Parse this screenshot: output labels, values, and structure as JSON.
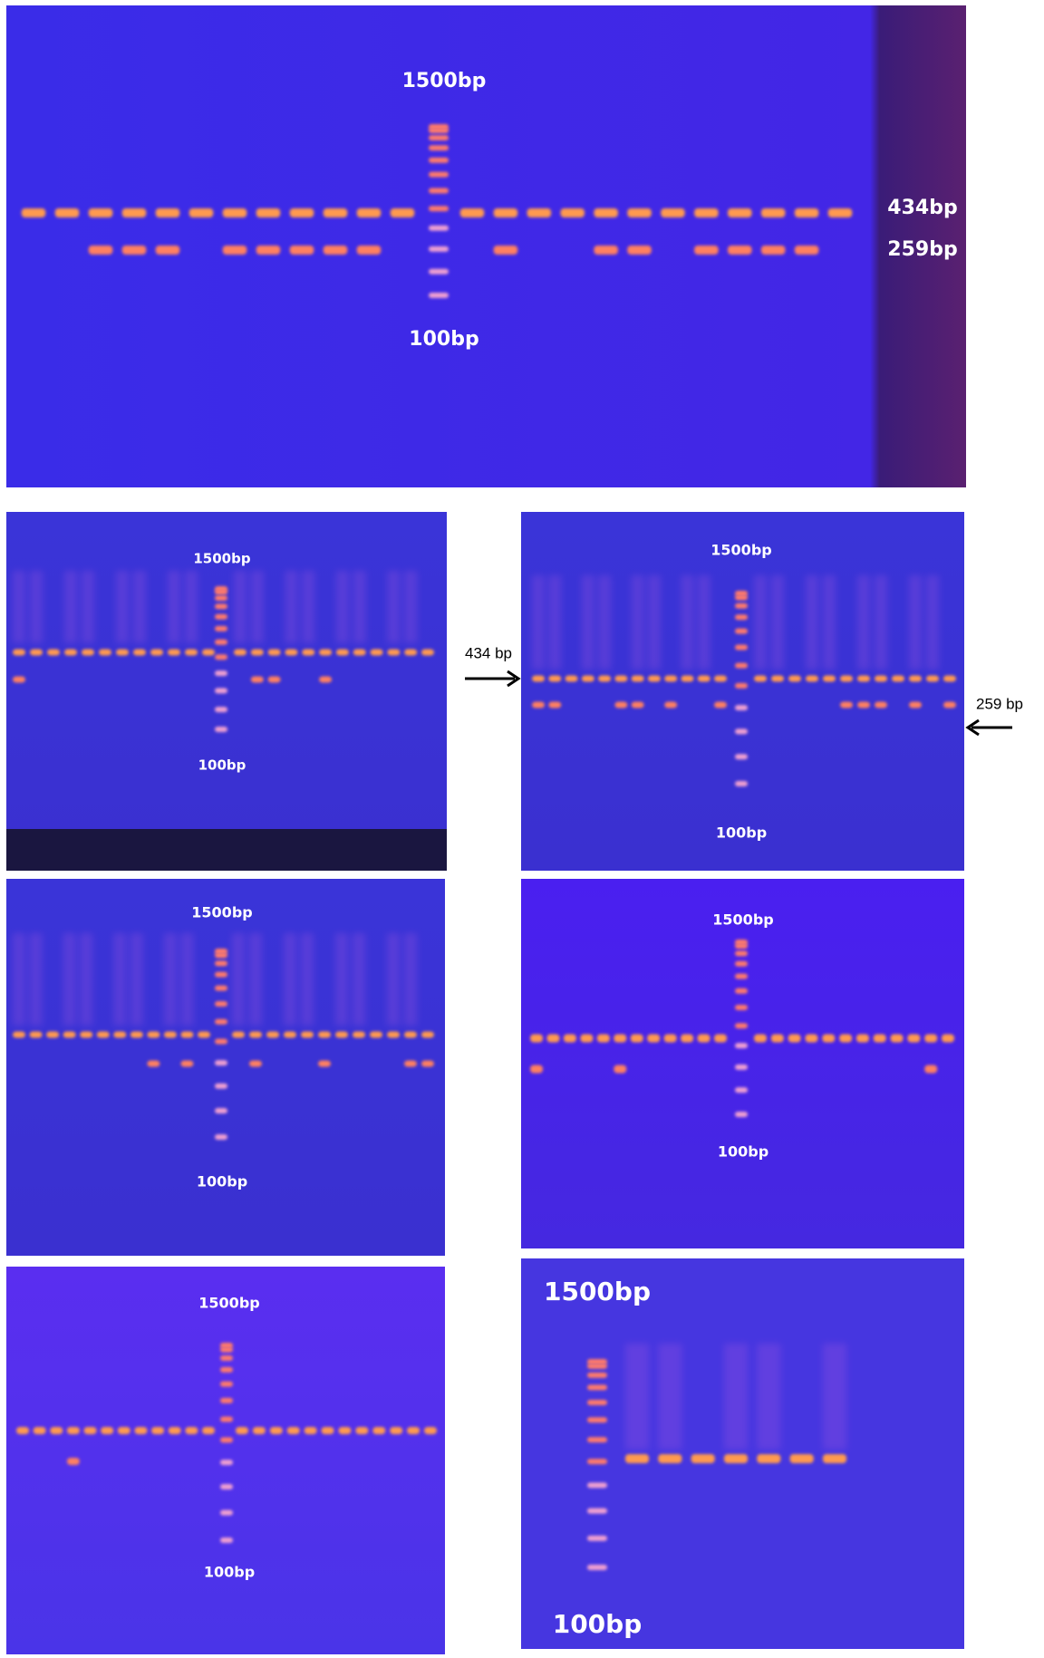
{
  "panels": [
    {
      "top_label": "1500bp",
      "bottom_label": "100bp",
      "band_labels": [
        "434bp",
        "259bp"
      ]
    },
    {
      "top_label": "1500bp",
      "bottom_label": "100bp"
    },
    {
      "top_label": "1500bp",
      "bottom_label": "100bp"
    },
    {
      "top_label": "1500bp",
      "bottom_label": "100bp"
    },
    {
      "top_label": "1500bp",
      "bottom_label": "100bp"
    },
    {
      "top_label": "1500bp",
      "bottom_label": "100bp"
    },
    {
      "top_label": "1500bp",
      "bottom_label": "100bp"
    }
  ],
  "arrows": [
    "434 bp",
    "259 bp"
  ]
}
